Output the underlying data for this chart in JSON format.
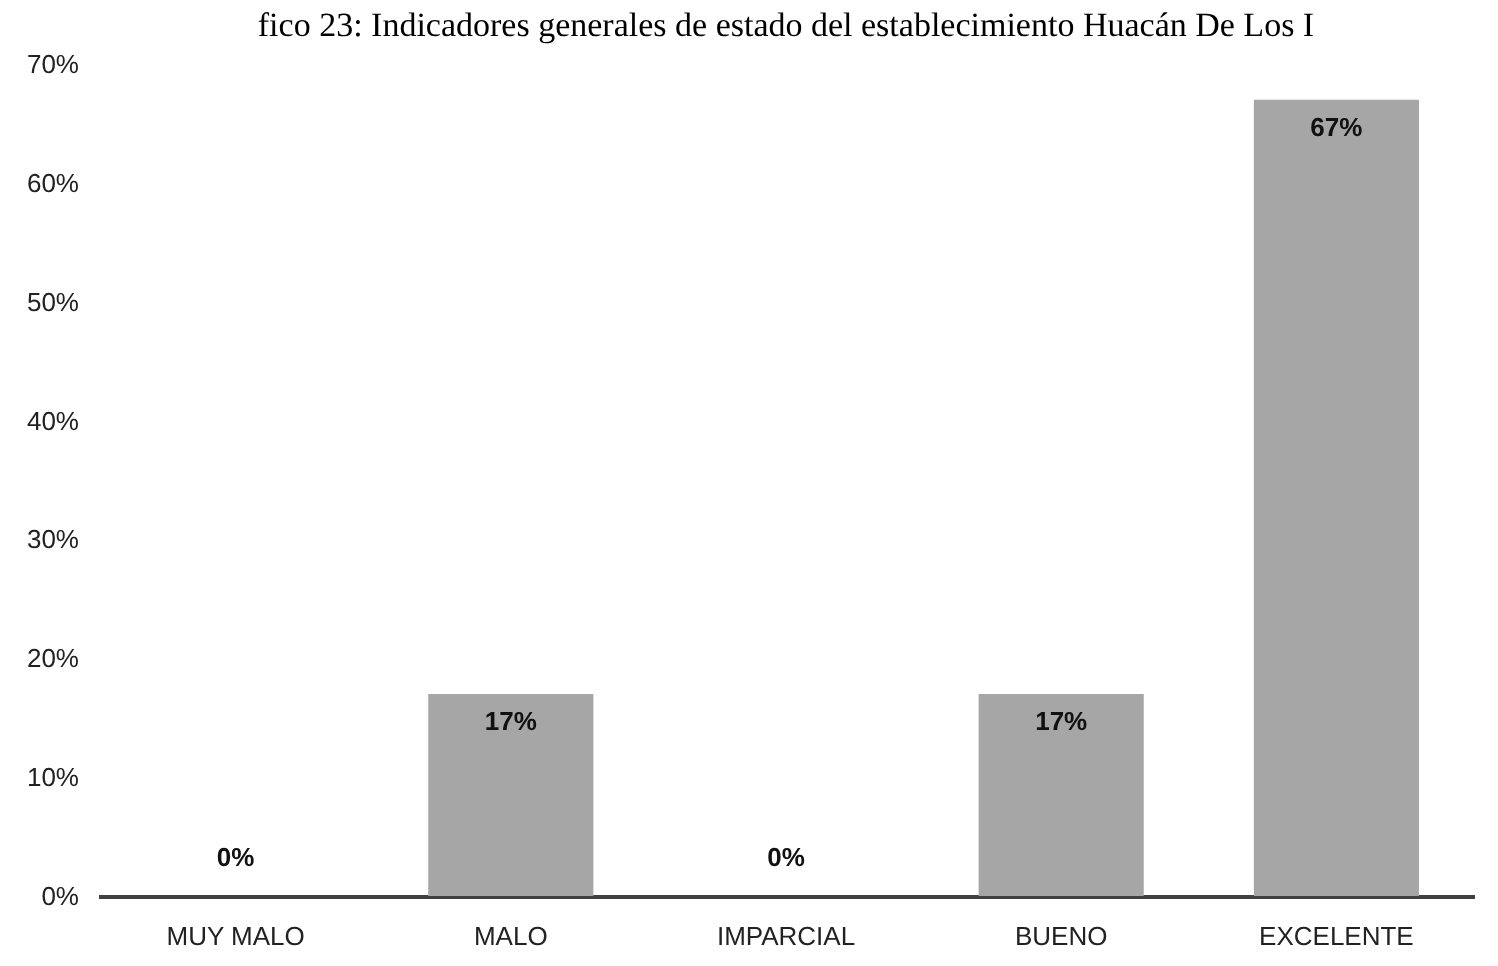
{
  "chart_data": {
    "type": "bar",
    "title": "fico 23: Indicadores generales de estado del establecimiento Huacán De Los I",
    "categories": [
      "MUY MALO",
      "MALO",
      "IMPARCIAL",
      "BUENO",
      "EXCELENTE"
    ],
    "values": [
      0,
      17,
      0,
      17,
      67
    ],
    "value_labels": [
      "0%",
      "17%",
      "0%",
      "17%",
      "67%"
    ],
    "color": "#a6a6a6",
    "ylim": [
      0,
      70
    ],
    "yticks": [
      {
        "value": 0,
        "label": "0%"
      },
      {
        "value": 10,
        "label": "10%"
      },
      {
        "value": 20,
        "label": "20%"
      },
      {
        "value": 30,
        "label": "30%"
      },
      {
        "value": 40,
        "label": "40%"
      },
      {
        "value": 50,
        "label": "50%"
      },
      {
        "value": 60,
        "label": "60%"
      },
      {
        "value": 70,
        "label": "70%"
      }
    ],
    "grid": false
  }
}
